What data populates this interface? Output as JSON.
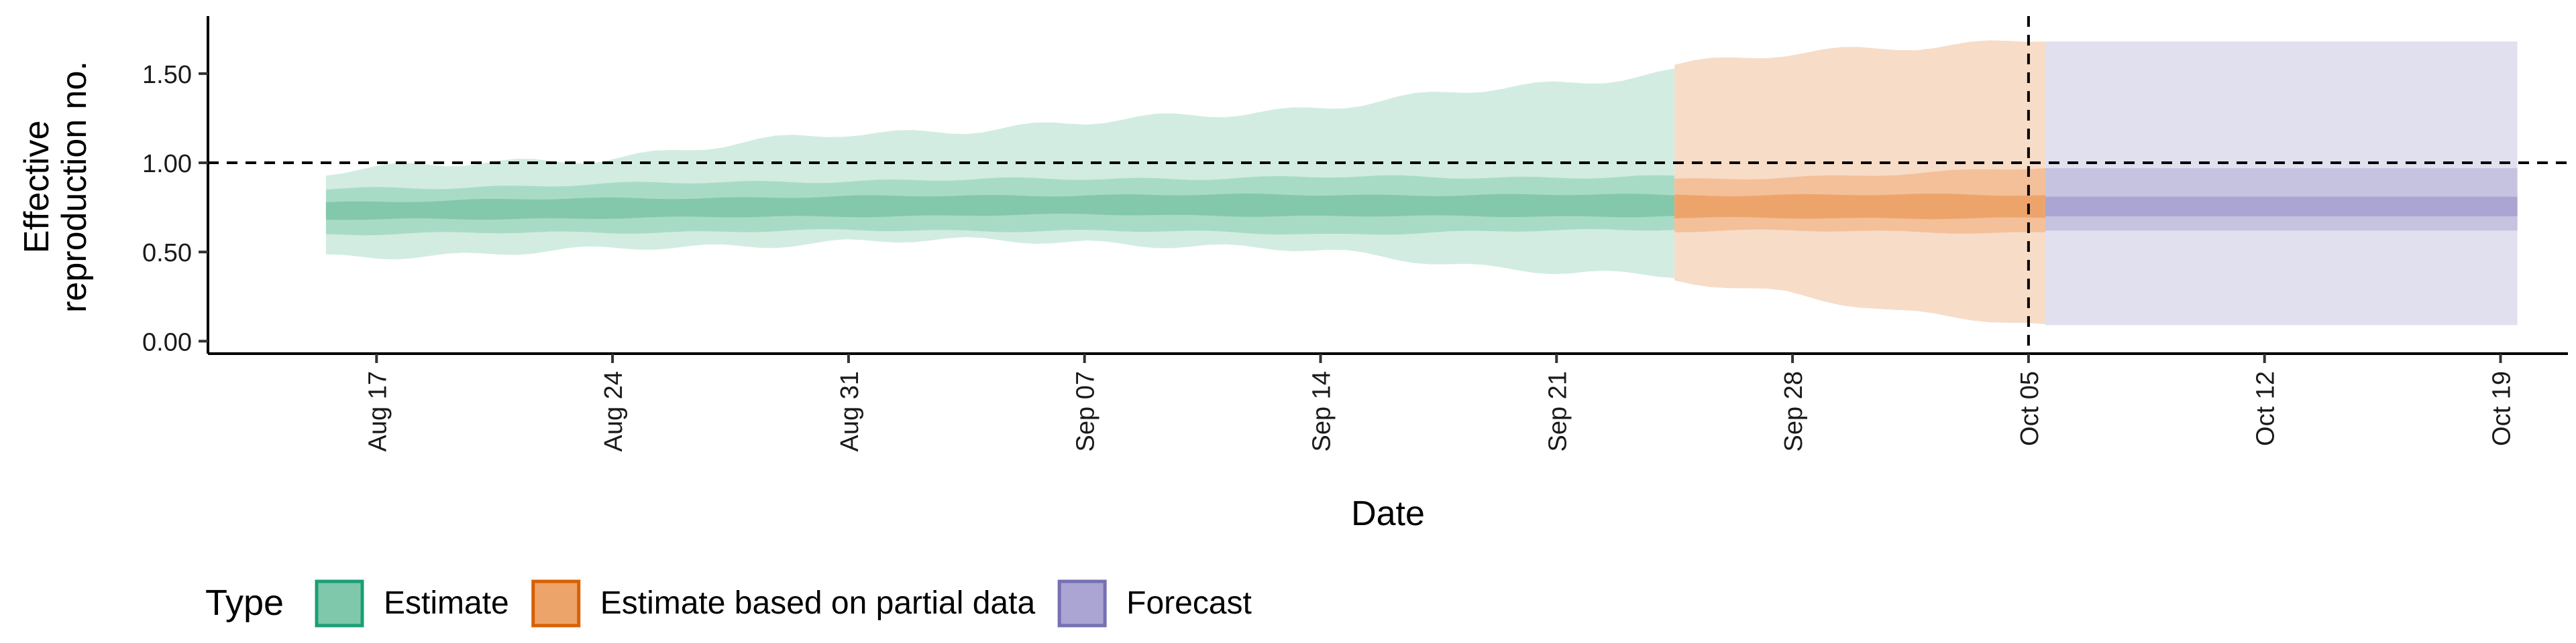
{
  "chart_data": {
    "type": "area",
    "xlabel": "Date",
    "ylabel_lines": [
      "Effective",
      "reproduction no."
    ],
    "ylim": [
      -0.07,
      1.8
    ],
    "xlim": [
      "2020-08-12",
      "2020-10-21"
    ],
    "y_ticks": [
      {
        "value": 0.0,
        "label": "0.00"
      },
      {
        "value": 0.5,
        "label": "0.50"
      },
      {
        "value": 1.0,
        "label": "1.00"
      },
      {
        "value": 1.5,
        "label": "1.50"
      }
    ],
    "x_ticks": [
      {
        "date": "2020-08-17",
        "label": "Aug 17"
      },
      {
        "date": "2020-08-24",
        "label": "Aug 24"
      },
      {
        "date": "2020-08-31",
        "label": "Aug 31"
      },
      {
        "date": "2020-09-07",
        "label": "Sep 07"
      },
      {
        "date": "2020-09-14",
        "label": "Sep 14"
      },
      {
        "date": "2020-09-21",
        "label": "Sep 21"
      },
      {
        "date": "2020-09-28",
        "label": "Sep 28"
      },
      {
        "date": "2020-10-05",
        "label": "Oct 05"
      },
      {
        "date": "2020-10-12",
        "label": "Oct 12"
      },
      {
        "date": "2020-10-19",
        "label": "Oct 19"
      }
    ],
    "reference_lines": {
      "horizontal_y": 1.0,
      "vertical_date": "2020-10-05",
      "style": "dashed"
    },
    "grid": false,
    "legend": {
      "title": "Type",
      "position": "bottom-left",
      "entries": [
        {
          "label": "Estimate",
          "fill": "#7fc8ac",
          "border": "#1b9e77"
        },
        {
          "label": "Estimate based on partial data",
          "fill": "#eda46b",
          "border": "#d95f02"
        },
        {
          "label": "Forecast",
          "fill": "#aaa5d3",
          "border": "#7570b3"
        }
      ]
    },
    "series": [
      {
        "name": "Estimate",
        "color": "#1b9e77",
        "start": "2020-08-16",
        "end": "2020-09-24",
        "key_points": [
          {
            "date": "2020-08-16",
            "median": 0.74,
            "q25": 0.68,
            "q75": 0.78,
            "q05": 0.6,
            "q95": 0.85,
            "lower90": 0.47,
            "upper90": 0.95
          },
          {
            "date": "2020-08-24",
            "median": 0.75,
            "q25": 0.69,
            "q75": 0.8,
            "q05": 0.61,
            "q95": 0.88,
            "lower90": 0.51,
            "upper90": 1.03
          },
          {
            "date": "2020-08-31",
            "median": 0.76,
            "q25": 0.7,
            "q75": 0.81,
            "q05": 0.62,
            "q95": 0.9,
            "lower90": 0.56,
            "upper90": 1.16
          },
          {
            "date": "2020-09-07",
            "median": 0.77,
            "q25": 0.71,
            "q75": 0.82,
            "q05": 0.62,
            "q95": 0.91,
            "lower90": 0.56,
            "upper90": 1.22
          },
          {
            "date": "2020-09-14",
            "median": 0.77,
            "q25": 0.7,
            "q75": 0.82,
            "q05": 0.6,
            "q95": 0.92,
            "lower90": 0.5,
            "upper90": 1.32
          },
          {
            "date": "2020-09-21",
            "median": 0.76,
            "q25": 0.7,
            "q75": 0.82,
            "q05": 0.62,
            "q95": 0.92,
            "lower90": 0.38,
            "upper90": 1.45
          },
          {
            "date": "2020-09-24",
            "median": 0.76,
            "q25": 0.7,
            "q75": 0.82,
            "q05": 0.63,
            "q95": 0.92,
            "lower90": 0.36,
            "upper90": 1.52
          }
        ]
      },
      {
        "name": "Estimate based on partial data",
        "color": "#d95f02",
        "start": "2020-09-25",
        "end": "2020-10-05",
        "key_points": [
          {
            "date": "2020-09-25",
            "median": 0.76,
            "q25": 0.69,
            "q75": 0.82,
            "q05": 0.62,
            "q95": 0.9,
            "lower90": 0.34,
            "upper90": 1.55
          },
          {
            "date": "2020-09-28",
            "median": 0.76,
            "q25": 0.69,
            "q75": 0.82,
            "q05": 0.62,
            "q95": 0.92,
            "lower90": 0.28,
            "upper90": 1.6
          },
          {
            "date": "2020-10-01",
            "median": 0.76,
            "q25": 0.69,
            "q75": 0.82,
            "q05": 0.61,
            "q95": 0.94,
            "lower90": 0.16,
            "upper90": 1.65
          },
          {
            "date": "2020-10-05",
            "median": 0.76,
            "q25": 0.69,
            "q75": 0.82,
            "q05": 0.61,
            "q95": 0.97,
            "lower90": 0.08,
            "upper90": 1.7
          }
        ]
      },
      {
        "name": "Forecast",
        "color": "#7570b3",
        "start": "2020-10-06",
        "end": "2020-10-19",
        "key_points": [
          {
            "date": "2020-10-06",
            "median": 0.76,
            "q25": 0.7,
            "q75": 0.81,
            "q05": 0.62,
            "q95": 0.97,
            "lower90": 0.09,
            "upper90": 1.68
          },
          {
            "date": "2020-10-19",
            "median": 0.76,
            "q25": 0.7,
            "q75": 0.81,
            "q05": 0.62,
            "q95": 0.97,
            "lower90": 0.09,
            "upper90": 1.68
          }
        ]
      }
    ]
  }
}
